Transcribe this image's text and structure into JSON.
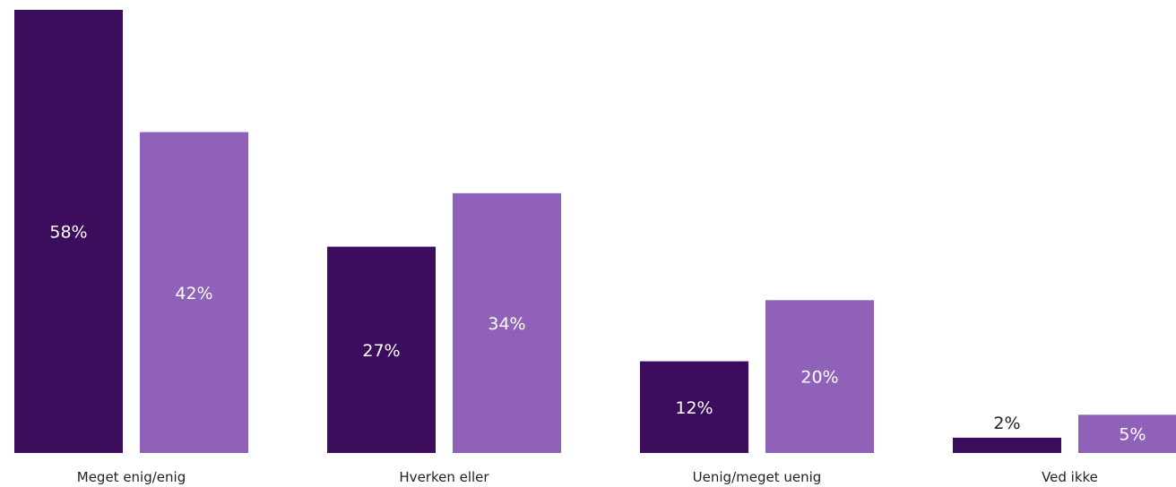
{
  "chart_data": {
    "type": "bar",
    "categories": [
      "Meget enig/enig",
      "Hverken eller",
      "Uenig/meget uenig",
      "Ved ikke"
    ],
    "series": [
      {
        "values": [
          58,
          27,
          12,
          2
        ],
        "labels": [
          "58%",
          "27%",
          "12%",
          "2%"
        ],
        "color": "#3b0d5c"
      },
      {
        "values": [
          42,
          34,
          20,
          5
        ],
        "labels": [
          "42%",
          "34%",
          "20%",
          "5%"
        ],
        "color": "#9061b8"
      }
    ],
    "ylim": [
      0,
      58
    ],
    "grid": false,
    "legend": "none"
  }
}
